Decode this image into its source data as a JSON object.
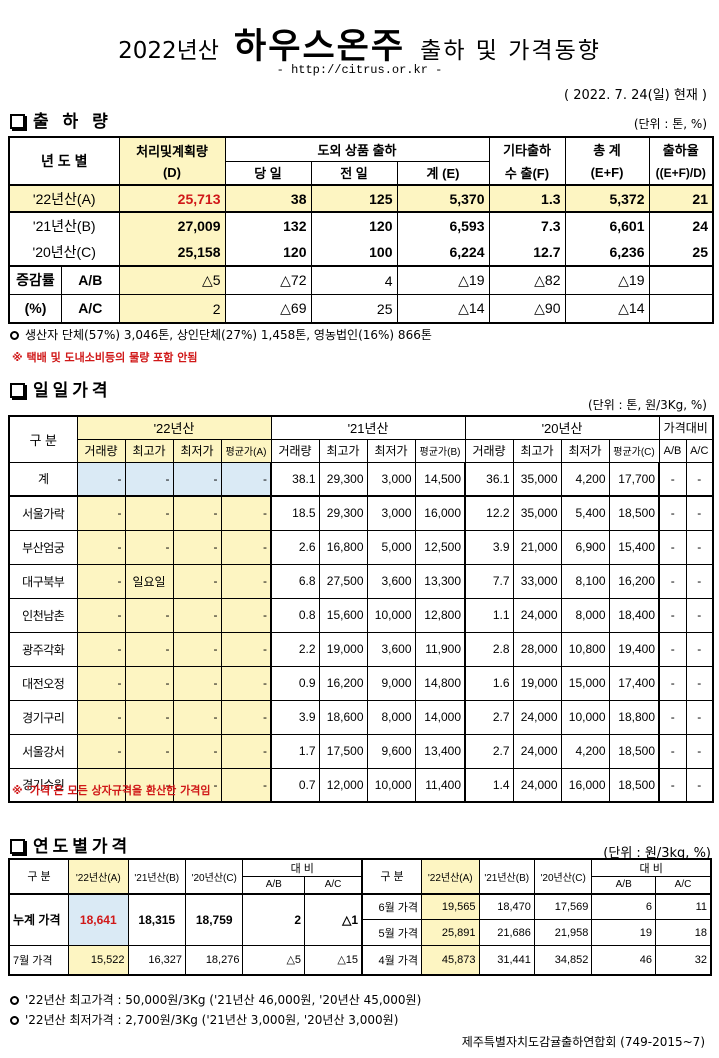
{
  "header": {
    "year_label": "2022년산",
    "title": "하우스온주",
    "subtitle": "출하 및 가격동향",
    "url": "- http://citrus.or.kr -",
    "as_of": "( 2022. 7. 24(일) 현재 )"
  },
  "shipment": {
    "title": "출 하 량",
    "unit": "(단위 : 톤, %)",
    "headers": {
      "year": "년 도 별",
      "plan": "처리및계획량",
      "plan_sub": "(D)",
      "domestic": "도외 상품 출하",
      "today": "당 일",
      "prev": "전 일",
      "total": "계 (E)",
      "other": "기타출하",
      "export": "수 출(F)",
      "sum": "총   계",
      "sum_sub": "(E+F)",
      "rate": "출하율",
      "rate_sub": "((E+F)/D)"
    },
    "rows": [
      {
        "year": "'22년산(A)",
        "plan": "25,713",
        "today": "38",
        "prev": "125",
        "total": "5,370",
        "export": "1.3",
        "sum": "5,372",
        "rate": "21"
      },
      {
        "year": "'21년산(B)",
        "plan": "27,009",
        "today": "132",
        "prev": "120",
        "total": "6,593",
        "export": "7.3",
        "sum": "6,601",
        "rate": "24"
      },
      {
        "year": "'20년산(C)",
        "plan": "25,158",
        "today": "120",
        "prev": "100",
        "total": "6,224",
        "export": "12.7",
        "sum": "6,236",
        "rate": "25"
      }
    ],
    "change": {
      "label1": "증감률",
      "label2": "(%)",
      "rows": [
        {
          "ratio": "A/B",
          "plan": "△5",
          "today": "△72",
          "prev": "4",
          "total": "△19",
          "export": "△82",
          "sum": "△19",
          "rate": ""
        },
        {
          "ratio": "A/C",
          "plan": "2",
          "today": "△69",
          "prev": "25",
          "total": "△14",
          "export": "△90",
          "sum": "△14",
          "rate": ""
        }
      ]
    },
    "note1": "생산자 단체(57%)  3,046톤,    상인단체(27%)  1,458톤,   영농법인(16%)   866톤",
    "note2": "※ 택배 및 도내소비등의 물량 포함 안됨"
  },
  "daily": {
    "title": "일일가격",
    "unit": "(단위 : 톤, 원/3Kg, %)",
    "headers": {
      "market": "구  분",
      "y22": "'22년산",
      "y21": "'21년산",
      "y20": "'20년산",
      "compare": "가격대비",
      "vol": "거래량",
      "hi": "최고가",
      "lo": "최저가",
      "avgA": "평균가(A)",
      "avgB": "평균가(B)",
      "avgC": "평균가(C)",
      "ab": "A/B",
      "ac": "A/C"
    },
    "rows": [
      {
        "market": "계",
        "v22": "-",
        "h22": "-",
        "l22": "-",
        "a22": "-",
        "v21": "38.1",
        "h21": "29,300",
        "l21": "3,000",
        "a21": "14,500",
        "v20": "36.1",
        "h20": "35,000",
        "l20": "4,200",
        "a20": "17,700",
        "ab": "-",
        "ac": "-"
      },
      {
        "market": "서울가락",
        "v22": "-",
        "h22": "-",
        "l22": "-",
        "a22": "-",
        "v21": "18.5",
        "h21": "29,300",
        "l21": "3,000",
        "a21": "16,000",
        "v20": "12.2",
        "h20": "35,000",
        "l20": "5,400",
        "a20": "18,500",
        "ab": "-",
        "ac": "-"
      },
      {
        "market": "부산엄궁",
        "v22": "-",
        "h22": "-",
        "l22": "-",
        "a22": "-",
        "v21": "2.6",
        "h21": "16,800",
        "l21": "5,000",
        "a21": "12,500",
        "v20": "3.9",
        "h20": "21,000",
        "l20": "6,900",
        "a20": "15,400",
        "ab": "-",
        "ac": "-"
      },
      {
        "market": "대구북부",
        "v22": "-",
        "h22": "일요일",
        "l22": "-",
        "a22": "-",
        "v21": "6.8",
        "h21": "27,500",
        "l21": "3,600",
        "a21": "13,300",
        "v20": "7.7",
        "h20": "33,000",
        "l20": "8,100",
        "a20": "16,200",
        "ab": "-",
        "ac": "-"
      },
      {
        "market": "인천남촌",
        "v22": "-",
        "h22": "-",
        "l22": "-",
        "a22": "-",
        "v21": "0.8",
        "h21": "15,600",
        "l21": "10,000",
        "a21": "12,800",
        "v20": "1.1",
        "h20": "24,000",
        "l20": "8,000",
        "a20": "18,400",
        "ab": "-",
        "ac": "-"
      },
      {
        "market": "광주각화",
        "v22": "-",
        "h22": "-",
        "l22": "-",
        "a22": "-",
        "v21": "2.2",
        "h21": "19,000",
        "l21": "3,600",
        "a21": "11,900",
        "v20": "2.8",
        "h20": "28,000",
        "l20": "10,800",
        "a20": "19,400",
        "ab": "-",
        "ac": "-"
      },
      {
        "market": "대전오정",
        "v22": "-",
        "h22": "-",
        "l22": "-",
        "a22": "-",
        "v21": "0.9",
        "h21": "16,200",
        "l21": "9,000",
        "a21": "14,800",
        "v20": "1.6",
        "h20": "19,000",
        "l20": "15,000",
        "a20": "17,400",
        "ab": "-",
        "ac": "-"
      },
      {
        "market": "경기구리",
        "v22": "-",
        "h22": "-",
        "l22": "-",
        "a22": "-",
        "v21": "3.9",
        "h21": "18,600",
        "l21": "8,000",
        "a21": "14,000",
        "v20": "2.7",
        "h20": "24,000",
        "l20": "10,000",
        "a20": "18,800",
        "ab": "-",
        "ac": "-"
      },
      {
        "market": "서울강서",
        "v22": "-",
        "h22": "-",
        "l22": "-",
        "a22": "-",
        "v21": "1.7",
        "h21": "17,500",
        "l21": "9,600",
        "a21": "13,400",
        "v20": "2.7",
        "h20": "24,000",
        "l20": "4,200",
        "a20": "18,500",
        "ab": "-",
        "ac": "-"
      },
      {
        "market": "경기수원",
        "v22": "-",
        "h22": "-",
        "l22": "-",
        "a22": "-",
        "v21": "0.7",
        "h21": "12,000",
        "l21": "10,000",
        "a21": "11,400",
        "v20": "1.4",
        "h20": "24,000",
        "l20": "16,000",
        "a20": "18,500",
        "ab": "-",
        "ac": "-"
      }
    ],
    "note": "※ '가격'은 모든 상자규격을 환산한 가격임"
  },
  "annual": {
    "title": "연도별가격",
    "unit": "(단위 : 원/3kg, %)",
    "headers": {
      "gubun": "구   분",
      "y22": "'22년산(A)",
      "y21": "'21년산(B)",
      "y20": "'20년산(C)",
      "compare": "대   비",
      "ab": "A/B",
      "ac": "A/C"
    },
    "left_rows": [
      {
        "label": "누계 가격",
        "a": "18,641",
        "b": "18,315",
        "c": "18,759",
        "ab": "2",
        "ac": "△1"
      },
      {
        "label": "7월 가격",
        "a": "15,522",
        "b": "16,327",
        "c": "18,276",
        "ab": "△5",
        "ac": "△15"
      }
    ],
    "right_rows": [
      {
        "label": "6월 가격",
        "a": "19,565",
        "b": "18,470",
        "c": "17,569",
        "ab": "6",
        "ac": "11"
      },
      {
        "label": "5월 가격",
        "a": "25,891",
        "b": "21,686",
        "c": "21,958",
        "ab": "19",
        "ac": "18"
      },
      {
        "label": "4월 가격",
        "a": "45,873",
        "b": "31,441",
        "c": "34,852",
        "ab": "46",
        "ac": "32"
      }
    ],
    "note_max": "'22년산 최고가격 : 50,000원/3Kg ('21년산 46,000원, '20년산 45,000원)",
    "note_min": "'22년산 최저가격 :   2,700원/3Kg ('21년산   3,000원, '20년산  3,000원)"
  },
  "footer": "제주특별자치도감귤출하연합회 (749-2015~7)"
}
